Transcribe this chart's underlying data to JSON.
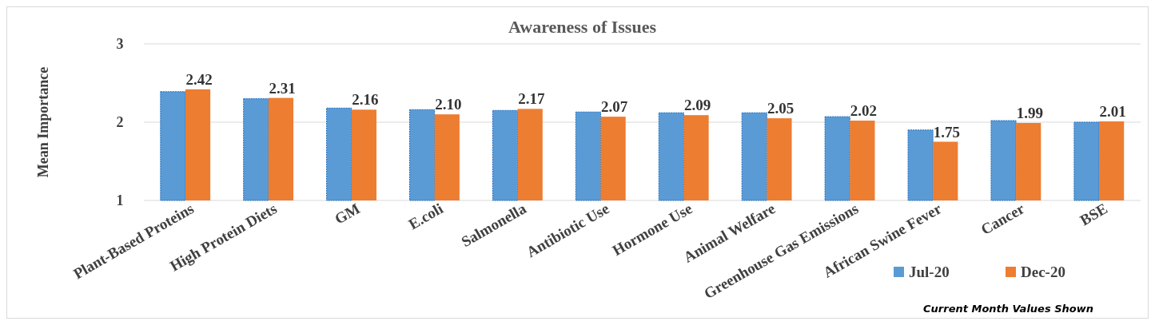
{
  "chart_data": {
    "type": "bar",
    "title": "Awareness of Issues",
    "ylabel": "Mean Importance",
    "categories": [
      "Plant-Based Proteins",
      "High Protein Diets",
      "GM",
      "E.coli",
      "Salmonella",
      "Antibiotic Use",
      "Hormone Use",
      "Animal Welfare",
      "Greenhouse Gas Emissions",
      "African Swine Fever",
      "Cancer",
      "BSE"
    ],
    "series": [
      {
        "name": "Jul-20",
        "color": "#5b9bd5",
        "values": [
          2.39,
          2.3,
          2.18,
          2.16,
          2.15,
          2.13,
          2.12,
          2.12,
          2.07,
          1.9,
          2.02,
          2.0
        ]
      },
      {
        "name": "Dec-20",
        "color": "#ed7d31",
        "values": [
          2.42,
          2.31,
          2.16,
          2.1,
          2.17,
          2.07,
          2.09,
          2.05,
          2.02,
          1.75,
          1.99,
          2.01
        ],
        "value_labels": [
          "2.42",
          "2.31",
          "2.16",
          "2.10",
          "2.17",
          "2.07",
          "2.09",
          "2.05",
          "2.02",
          "1.75",
          "1.99",
          "2.01"
        ]
      }
    ],
    "ylim": [
      1,
      3
    ],
    "yticks": [
      1,
      2,
      3
    ],
    "grid": "y",
    "legend": "bottom right",
    "annotations": [
      "Current Month Values Shown"
    ]
  }
}
